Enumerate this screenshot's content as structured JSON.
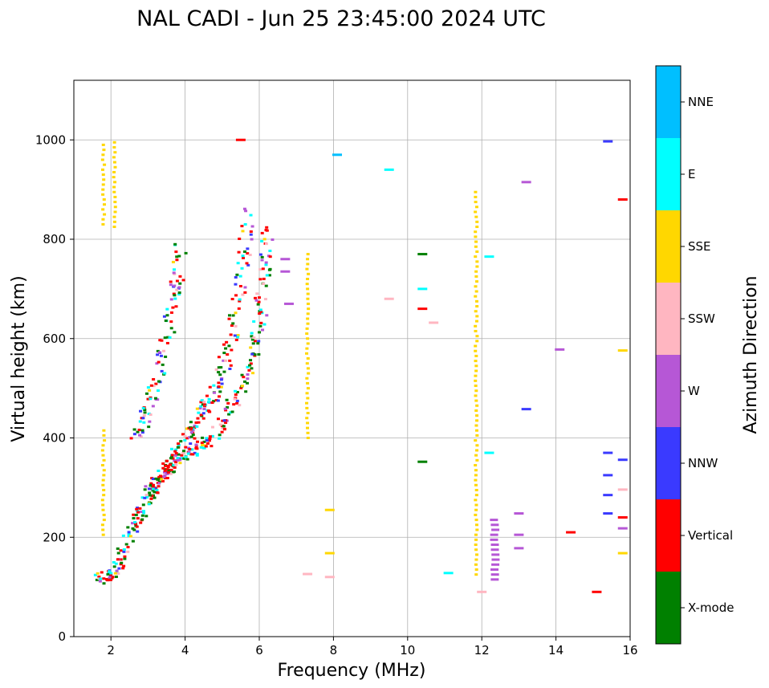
{
  "chart_data": {
    "type": "scatter",
    "title": "NAL CADI - Jun 25 23:45:00 2024 UTC",
    "xlabel": "Frequency (MHz)",
    "ylabel": "Virtual height (km)",
    "xlim": [
      1,
      16
    ],
    "ylim": [
      0,
      1120
    ],
    "xticks": [
      2,
      4,
      6,
      8,
      10,
      12,
      14,
      16
    ],
    "yticks": [
      0,
      200,
      400,
      600,
      800,
      1000
    ],
    "grid": true,
    "colorbar": {
      "label": "Azimuth Direction",
      "categories": [
        {
          "name": "X-mode",
          "color": "#008000"
        },
        {
          "name": "Vertical",
          "color": "#ff0000"
        },
        {
          "name": "NNW",
          "color": "#3a3aff"
        },
        {
          "name": "W",
          "color": "#b657d6"
        },
        {
          "name": "SSW",
          "color": "#ffb6c1"
        },
        {
          "name": "SSE",
          "color": "#ffd700"
        },
        {
          "name": "E",
          "color": "#00ffff"
        },
        {
          "name": "NNE",
          "color": "#00bfff"
        }
      ]
    },
    "traces": [
      {
        "name": "low-trace-1",
        "points": [
          [
            1.7,
            115
          ],
          [
            1.9,
            120
          ],
          [
            2.1,
            130
          ],
          [
            2.3,
            160
          ],
          [
            2.5,
            200
          ],
          [
            2.7,
            240
          ],
          [
            2.9,
            260
          ],
          [
            3.1,
            290
          ],
          [
            3.3,
            310
          ],
          [
            3.5,
            330
          ],
          [
            3.7,
            350
          ],
          [
            3.9,
            380
          ],
          [
            4.1,
            410
          ],
          [
            4.3,
            430
          ],
          [
            4.5,
            460
          ],
          [
            4.7,
            480
          ],
          [
            4.9,
            510
          ],
          [
            5.1,
            560
          ],
          [
            5.3,
            620
          ],
          [
            5.5,
            700
          ],
          [
            5.6,
            780
          ],
          [
            5.7,
            860
          ]
        ]
      },
      {
        "name": "low-trace-2",
        "points": [
          [
            3.0,
            290
          ],
          [
            3.3,
            320
          ],
          [
            3.6,
            345
          ],
          [
            3.9,
            360
          ],
          [
            4.2,
            370
          ],
          [
            4.5,
            385
          ],
          [
            4.8,
            410
          ],
          [
            5.1,
            440
          ],
          [
            5.4,
            480
          ],
          [
            5.7,
            530
          ],
          [
            5.9,
            580
          ],
          [
            6.0,
            640
          ],
          [
            6.1,
            700
          ],
          [
            6.2,
            760
          ],
          [
            6.2,
            830
          ]
        ]
      },
      {
        "name": "upper-trace",
        "points": [
          [
            2.7,
            400
          ],
          [
            2.9,
            440
          ],
          [
            3.1,
            480
          ],
          [
            3.3,
            540
          ],
          [
            3.5,
            600
          ],
          [
            3.7,
            680
          ],
          [
            3.8,
            720
          ],
          [
            3.9,
            790
          ]
        ]
      }
    ],
    "scattered_points": [
      {
        "x": 5.5,
        "y": 1000,
        "c": "Vertical"
      },
      {
        "x": 8.1,
        "y": 970,
        "c": "NNE"
      },
      {
        "x": 9.5,
        "y": 940,
        "c": "E"
      },
      {
        "x": 10.4,
        "y": 770,
        "c": "X-mode"
      },
      {
        "x": 10.4,
        "y": 700,
        "c": "E"
      },
      {
        "x": 10.4,
        "y": 660,
        "c": "Vertical"
      },
      {
        "x": 10.7,
        "y": 632,
        "c": "SSW"
      },
      {
        "x": 9.5,
        "y": 680,
        "c": "SSW"
      },
      {
        "x": 10.4,
        "y": 352,
        "c": "X-mode"
      },
      {
        "x": 11.1,
        "y": 128,
        "c": "E"
      },
      {
        "x": 12.0,
        "y": 90,
        "c": "SSW"
      },
      {
        "x": 12.2,
        "y": 765,
        "c": "E"
      },
      {
        "x": 12.2,
        "y": 370,
        "c": "E"
      },
      {
        "x": 13.2,
        "y": 915,
        "c": "W"
      },
      {
        "x": 13.2,
        "y": 458,
        "c": "NNW"
      },
      {
        "x": 14.1,
        "y": 578,
        "c": "W"
      },
      {
        "x": 14.4,
        "y": 210,
        "c": "Vertical"
      },
      {
        "x": 15.1,
        "y": 90,
        "c": "Vertical"
      },
      {
        "x": 15.4,
        "y": 997,
        "c": "NNW"
      },
      {
        "x": 15.8,
        "y": 880,
        "c": "Vertical"
      },
      {
        "x": 15.8,
        "y": 576,
        "c": "SSE"
      },
      {
        "x": 15.8,
        "y": 356,
        "c": "NNW"
      },
      {
        "x": 15.8,
        "y": 296,
        "c": "SSW"
      },
      {
        "x": 15.8,
        "y": 240,
        "c": "Vertical"
      },
      {
        "x": 15.8,
        "y": 218,
        "c": "W"
      },
      {
        "x": 15.8,
        "y": 168,
        "c": "SSE"
      },
      {
        "x": 15.4,
        "y": 370,
        "c": "NNW"
      },
      {
        "x": 15.4,
        "y": 325,
        "c": "NNW"
      },
      {
        "x": 15.4,
        "y": 285,
        "c": "NNW"
      },
      {
        "x": 15.4,
        "y": 248,
        "c": "NNW"
      },
      {
        "x": 13.0,
        "y": 248,
        "c": "W"
      },
      {
        "x": 13.0,
        "y": 205,
        "c": "W"
      },
      {
        "x": 13.0,
        "y": 178,
        "c": "W"
      },
      {
        "x": 7.9,
        "y": 168,
        "c": "SSE"
      },
      {
        "x": 7.9,
        "y": 120,
        "c": "SSW"
      },
      {
        "x": 7.3,
        "y": 126,
        "c": "SSW"
      },
      {
        "x": 7.9,
        "y": 255,
        "c": "SSE"
      },
      {
        "x": 6.8,
        "y": 670,
        "c": "W"
      },
      {
        "x": 6.7,
        "y": 760,
        "c": "W"
      },
      {
        "x": 6.7,
        "y": 735,
        "c": "W"
      }
    ],
    "vertical_streaks": [
      {
        "x": 1.8,
        "y0": 830,
        "y1": 995,
        "c": "SSE"
      },
      {
        "x": 1.8,
        "y0": 205,
        "y1": 415,
        "c": "SSE"
      },
      {
        "x": 2.1,
        "y0": 825,
        "y1": 995,
        "c": "SSE"
      },
      {
        "x": 7.3,
        "y0": 400,
        "y1": 770,
        "c": "SSE"
      },
      {
        "x": 11.85,
        "y0": 125,
        "y1": 895,
        "c": "SSE"
      },
      {
        "x": 12.35,
        "y0": 115,
        "y1": 240,
        "c": "W"
      }
    ]
  }
}
